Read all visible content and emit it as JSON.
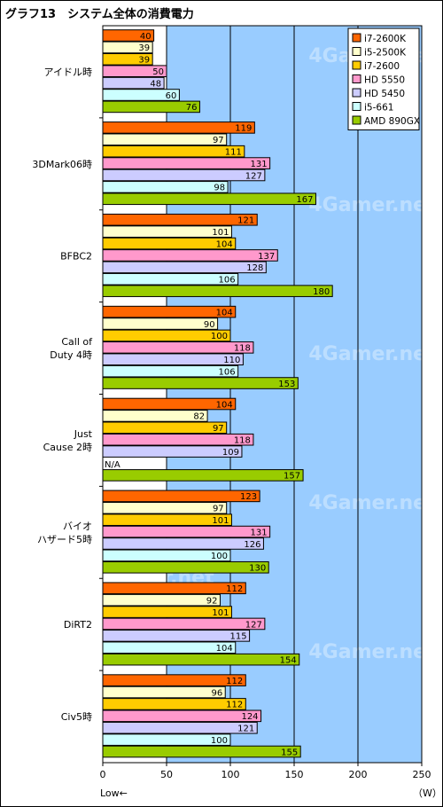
{
  "chart_data": {
    "type": "bar",
    "orientation": "horizontal",
    "title": "グラフ13　システム全体の消費電力",
    "unit": "（W）",
    "axis_note": "Low←",
    "xlim": [
      0,
      250
    ],
    "ticks": [
      0,
      50,
      100,
      150,
      200,
      250
    ],
    "grid": true,
    "legend_position": "top-right",
    "watermark": "4Gamer.net",
    "colors": {
      "plot_bg": "#99ccff",
      "plot_bg_left": "#ffffff",
      "grid": "#000000"
    },
    "categories": [
      [
        "アイドル時"
      ],
      [
        "3DMark06時"
      ],
      [
        "BFBC2"
      ],
      [
        "Call of",
        "Duty 4時"
      ],
      [
        "Just",
        "Cause 2時"
      ],
      [
        "バイオ",
        "ハザード5時"
      ],
      [
        "DiRT2"
      ],
      [
        "Civ5時"
      ]
    ],
    "series": [
      {
        "name": "i7-2600K",
        "color": "#ff6600",
        "values": [
          40,
          119,
          121,
          104,
          104,
          123,
          112,
          112
        ]
      },
      {
        "name": "i5-2500K",
        "color": "#ffffcc",
        "values": [
          39,
          97,
          101,
          90,
          82,
          97,
          92,
          96
        ]
      },
      {
        "name": "i7-2600",
        "color": "#ffcc00",
        "values": [
          39,
          111,
          104,
          100,
          97,
          101,
          101,
          112
        ]
      },
      {
        "name": "HD 5550",
        "color": "#ff99cc",
        "values": [
          50,
          131,
          137,
          118,
          118,
          131,
          127,
          124
        ]
      },
      {
        "name": "HD 5450",
        "color": "#ccccff",
        "values": [
          48,
          127,
          128,
          110,
          109,
          126,
          115,
          121
        ]
      },
      {
        "name": "i5-661",
        "color": "#ccffff",
        "values": [
          60,
          98,
          106,
          106,
          null,
          100,
          104,
          100
        ]
      },
      {
        "name": "AMD 890GX",
        "color": "#99cc00",
        "values": [
          76,
          167,
          180,
          153,
          157,
          130,
          154,
          155
        ]
      }
    ],
    "missing_label": "N/A"
  }
}
